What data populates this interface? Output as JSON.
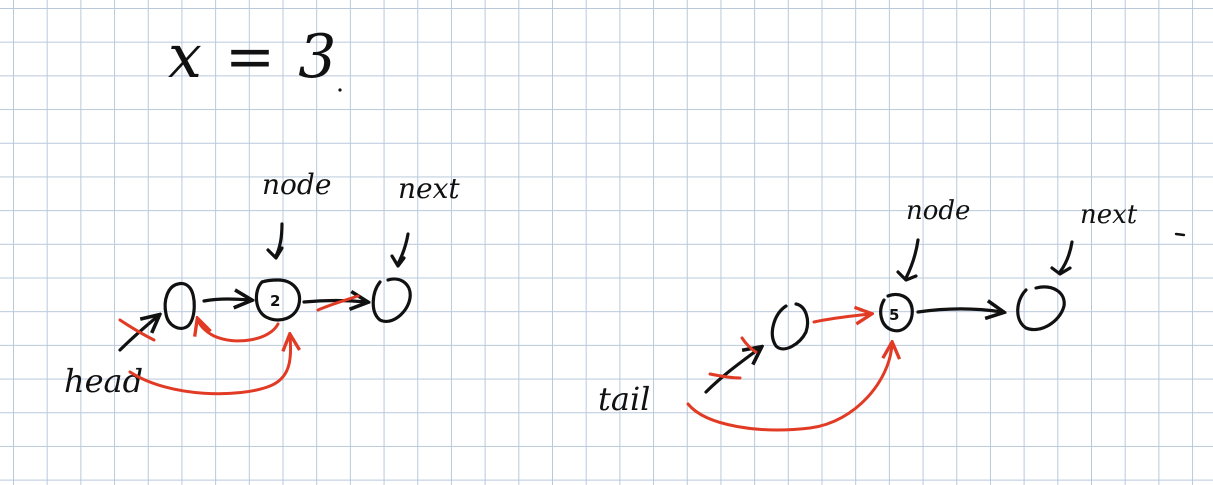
{
  "equation": "x = 3",
  "left_diagram": {
    "head_label": "head",
    "node_label": "node",
    "next_label": "next",
    "nodes": [
      {
        "value": ""
      },
      {
        "value": "2"
      },
      {
        "value": ""
      }
    ]
  },
  "right_diagram": {
    "tail_label": "tail",
    "node_label": "node",
    "next_label": "next",
    "nodes": [
      {
        "value": ""
      },
      {
        "value": "5"
      },
      {
        "value": ""
      }
    ]
  },
  "colors": {
    "ink": "#111111",
    "correction_ink": "#e23b25",
    "grid": "#b9c8dc"
  }
}
